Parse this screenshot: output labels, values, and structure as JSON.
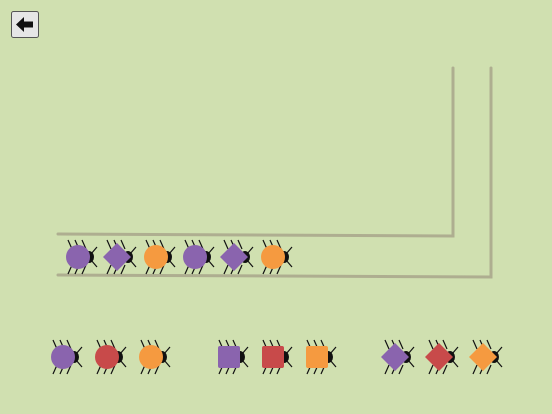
{
  "track": [
    {
      "shape": "circle",
      "color": "#8a64ae"
    },
    {
      "shape": "diamond",
      "color": "#8a64ae"
    },
    {
      "shape": "circle",
      "color": "#f59a40"
    },
    {
      "shape": "circle",
      "color": "#8a64ae"
    },
    {
      "shape": "diamond",
      "color": "#8a64ae"
    },
    {
      "shape": "circle",
      "color": "#f59a40"
    }
  ],
  "choices": [
    {
      "shape": "circle",
      "color": "#8a64ae"
    },
    {
      "shape": "circle",
      "color": "#c84a4a"
    },
    {
      "shape": "circle",
      "color": "#f59a40"
    },
    {
      "shape": "square",
      "color": "#8a64ae"
    },
    {
      "shape": "square",
      "color": "#c84a4a"
    },
    {
      "shape": "square",
      "color": "#f59a40"
    },
    {
      "shape": "diamond",
      "color": "#8a64ae"
    },
    {
      "shape": "diamond",
      "color": "#c84a4a"
    },
    {
      "shape": "diamond",
      "color": "#f59a40"
    }
  ]
}
